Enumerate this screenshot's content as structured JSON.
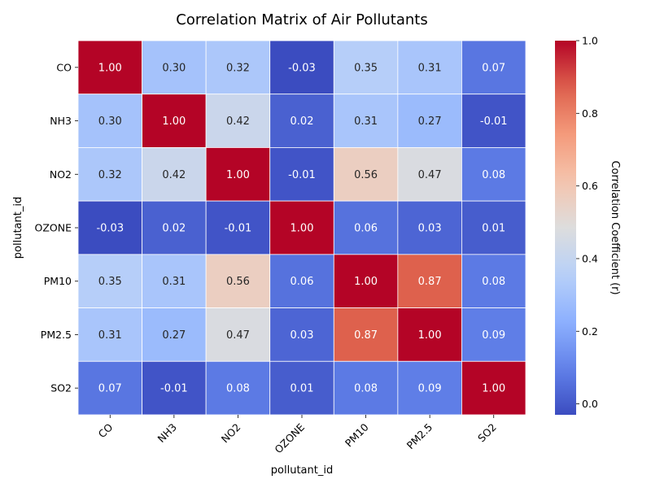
{
  "chart_data": {
    "type": "heatmap",
    "title": "Correlation Matrix of Air Pollutants",
    "xlabel": "pollutant_id",
    "ylabel": "pollutant_id",
    "x_categories": [
      "CO",
      "NH3",
      "NO2",
      "OZONE",
      "PM10",
      "PM2.5",
      "SO2"
    ],
    "y_categories": [
      "CO",
      "NH3",
      "NO2",
      "OZONE",
      "PM10",
      "PM2.5",
      "SO2"
    ],
    "values": [
      [
        1.0,
        0.3,
        0.32,
        -0.03,
        0.35,
        0.31,
        0.07
      ],
      [
        0.3,
        1.0,
        0.42,
        0.02,
        0.31,
        0.27,
        -0.01
      ],
      [
        0.32,
        0.42,
        1.0,
        -0.01,
        0.56,
        0.47,
        0.08
      ],
      [
        -0.03,
        0.02,
        -0.01,
        1.0,
        0.06,
        0.03,
        0.01
      ],
      [
        0.35,
        0.31,
        0.56,
        0.06,
        1.0,
        0.87,
        0.08
      ],
      [
        0.31,
        0.27,
        0.47,
        0.03,
        0.87,
        1.0,
        0.09
      ],
      [
        0.07,
        -0.01,
        0.08,
        0.01,
        0.08,
        0.09,
        1.0
      ]
    ],
    "value_format": "2 decimals",
    "colormap": "coolwarm",
    "colorbar": {
      "label": "Correlation Coefficient (r)",
      "range": [
        -0.03,
        1.0
      ],
      "ticks": [
        "0.0",
        "0.2",
        "0.4",
        "0.6",
        "0.8",
        "1.0"
      ],
      "tick_values": [
        0.0,
        0.2,
        0.4,
        0.6,
        0.8,
        1.0
      ],
      "placement": "right"
    },
    "grid": false
  }
}
